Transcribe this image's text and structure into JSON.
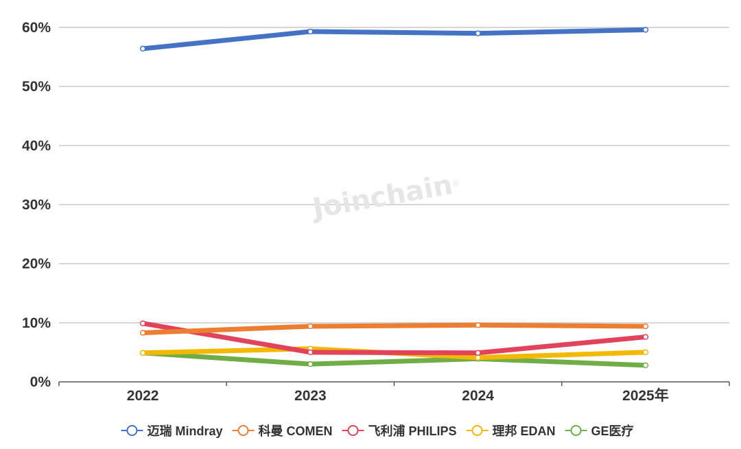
{
  "chart_data": {
    "type": "line",
    "categories": [
      "2022",
      "2023",
      "2024",
      "2025年"
    ],
    "ylim": [
      0,
      60
    ],
    "yticks": [
      0,
      10,
      20,
      30,
      40,
      50,
      60
    ],
    "ytick_labels": [
      "0%",
      "10%",
      "20%",
      "30%",
      "40%",
      "50%",
      "60%"
    ],
    "grid": true,
    "legend_position": "bottom",
    "series": [
      {
        "name": "迈瑞 Mindray",
        "color": "#4472C4",
        "values": [
          56.4,
          59.3,
          59.0,
          59.6
        ]
      },
      {
        "name": "科曼 COMEN",
        "color": "#ED7D31",
        "values": [
          8.3,
          9.4,
          9.6,
          9.4
        ]
      },
      {
        "name": "飞利浦 PHILIPS",
        "color": "#E0435A",
        "values": [
          9.9,
          5.0,
          4.9,
          7.6
        ]
      },
      {
        "name": "理邦 EDAN",
        "color": "#F5B800",
        "values": [
          4.9,
          5.6,
          4.1,
          5.0
        ]
      },
      {
        "name": "GE医疗",
        "color": "#70AD47",
        "values": [
          4.9,
          3.0,
          3.9,
          2.8
        ]
      }
    ]
  },
  "watermark": "Joinchain",
  "watermark_mark": "®"
}
